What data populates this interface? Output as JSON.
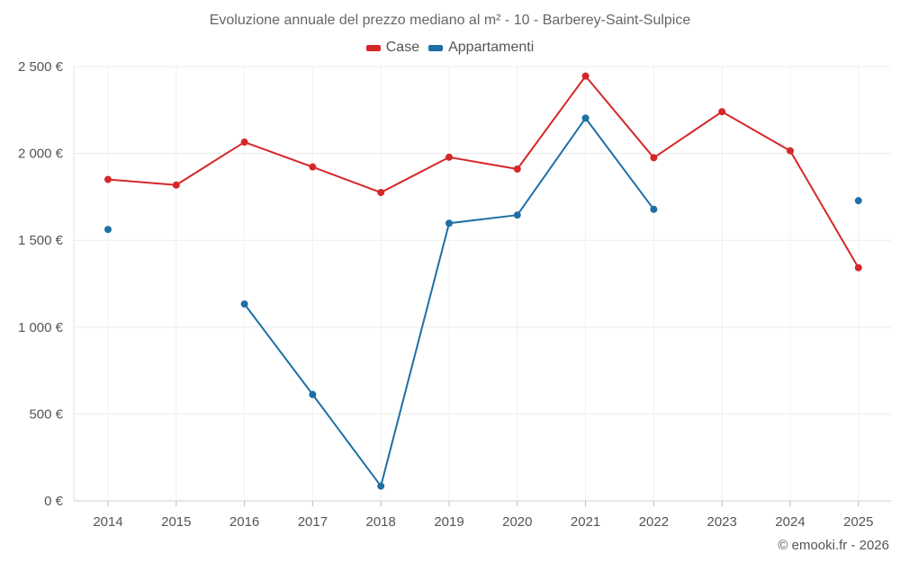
{
  "chart_data": {
    "type": "line",
    "title": "Evoluzione annuale del prezzo mediano al m² - 10 - Barberey-Saint-Sulpice",
    "xlabel": "",
    "ylabel": "",
    "categories": [
      "2014",
      "2015",
      "2016",
      "2017",
      "2018",
      "2019",
      "2020",
      "2021",
      "2022",
      "2023",
      "2024",
      "2025"
    ],
    "ylim": [
      0,
      2500
    ],
    "yticks": [
      0,
      500,
      1000,
      1500,
      2000,
      2500
    ],
    "ytick_labels": [
      "0 €",
      "500 €",
      "1 000 €",
      "1 500 €",
      "2 000 €",
      "2 500 €"
    ],
    "grid": true,
    "legend_position": "top-center",
    "series": [
      {
        "name": "Case",
        "color": "#d62728",
        "values": [
          1850,
          1818,
          2065,
          1922,
          1775,
          1978,
          1910,
          2445,
          1975,
          2240,
          2015,
          1342
        ]
      },
      {
        "name": "Appartamenti",
        "color": "#1f6fa5",
        "values": [
          1562,
          null,
          1133,
          612,
          85,
          1598,
          1645,
          2203,
          1678,
          null,
          null,
          1728
        ]
      }
    ]
  },
  "footer": {
    "credit": "© emooki.fr - 2026"
  }
}
